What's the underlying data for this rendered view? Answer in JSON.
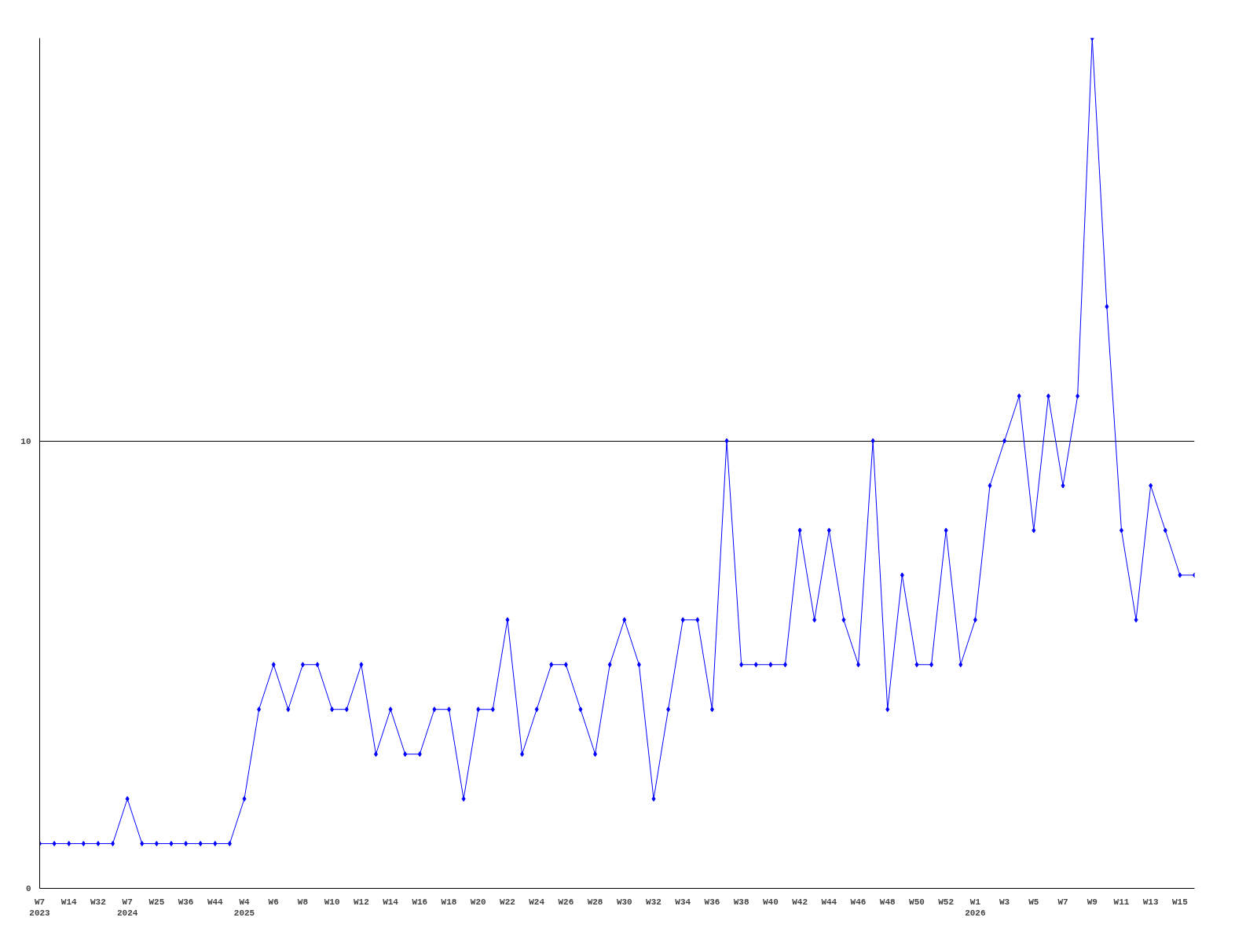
{
  "chart_data": {
    "type": "line",
    "color": "#0000ff",
    "marker": "diamond",
    "grid": "y",
    "categories": [
      "W7\n2023",
      null,
      "W14",
      null,
      "W32",
      null,
      "W7\n2024",
      null,
      "W25",
      null,
      "W36",
      null,
      "W44",
      null,
      "W4\n2025",
      null,
      "W6",
      null,
      "W8",
      null,
      "W10",
      null,
      "W12",
      null,
      "W14",
      null,
      "W16",
      null,
      "W18",
      null,
      "W20",
      null,
      "W22",
      null,
      "W24",
      null,
      "W26",
      null,
      "W28",
      null,
      "W30",
      null,
      "W32",
      null,
      "W34",
      null,
      "W36",
      null,
      "W38",
      null,
      "W40",
      null,
      "W42",
      null,
      "W44",
      null,
      "W46",
      null,
      "W48",
      null,
      "W50",
      null,
      "W52",
      null,
      "W1\n2026",
      null,
      "W3",
      null,
      "W5",
      null,
      "W7",
      null,
      "W9",
      null,
      "W11",
      null,
      "W13",
      null,
      "W15",
      null
    ],
    "values": [
      1,
      1,
      1,
      1,
      1,
      1,
      2,
      1,
      1,
      1,
      1,
      1,
      1,
      1,
      2,
      4,
      5,
      4,
      5,
      5,
      4,
      4,
      5,
      3,
      4,
      3,
      3,
      4,
      4,
      2,
      4,
      4,
      6,
      3,
      4,
      5,
      5,
      4,
      3,
      5,
      6,
      5,
      2,
      4,
      6,
      6,
      4,
      10,
      5,
      5,
      5,
      5,
      8,
      6,
      8,
      6,
      5,
      10,
      4,
      7,
      5,
      5,
      8,
      5,
      6,
      9,
      10,
      11,
      8,
      11,
      9,
      11,
      19,
      13,
      8,
      6,
      9,
      8,
      7,
      7
    ],
    "ylim": [
      0,
      19
    ],
    "yticks": [
      0,
      10
    ]
  }
}
